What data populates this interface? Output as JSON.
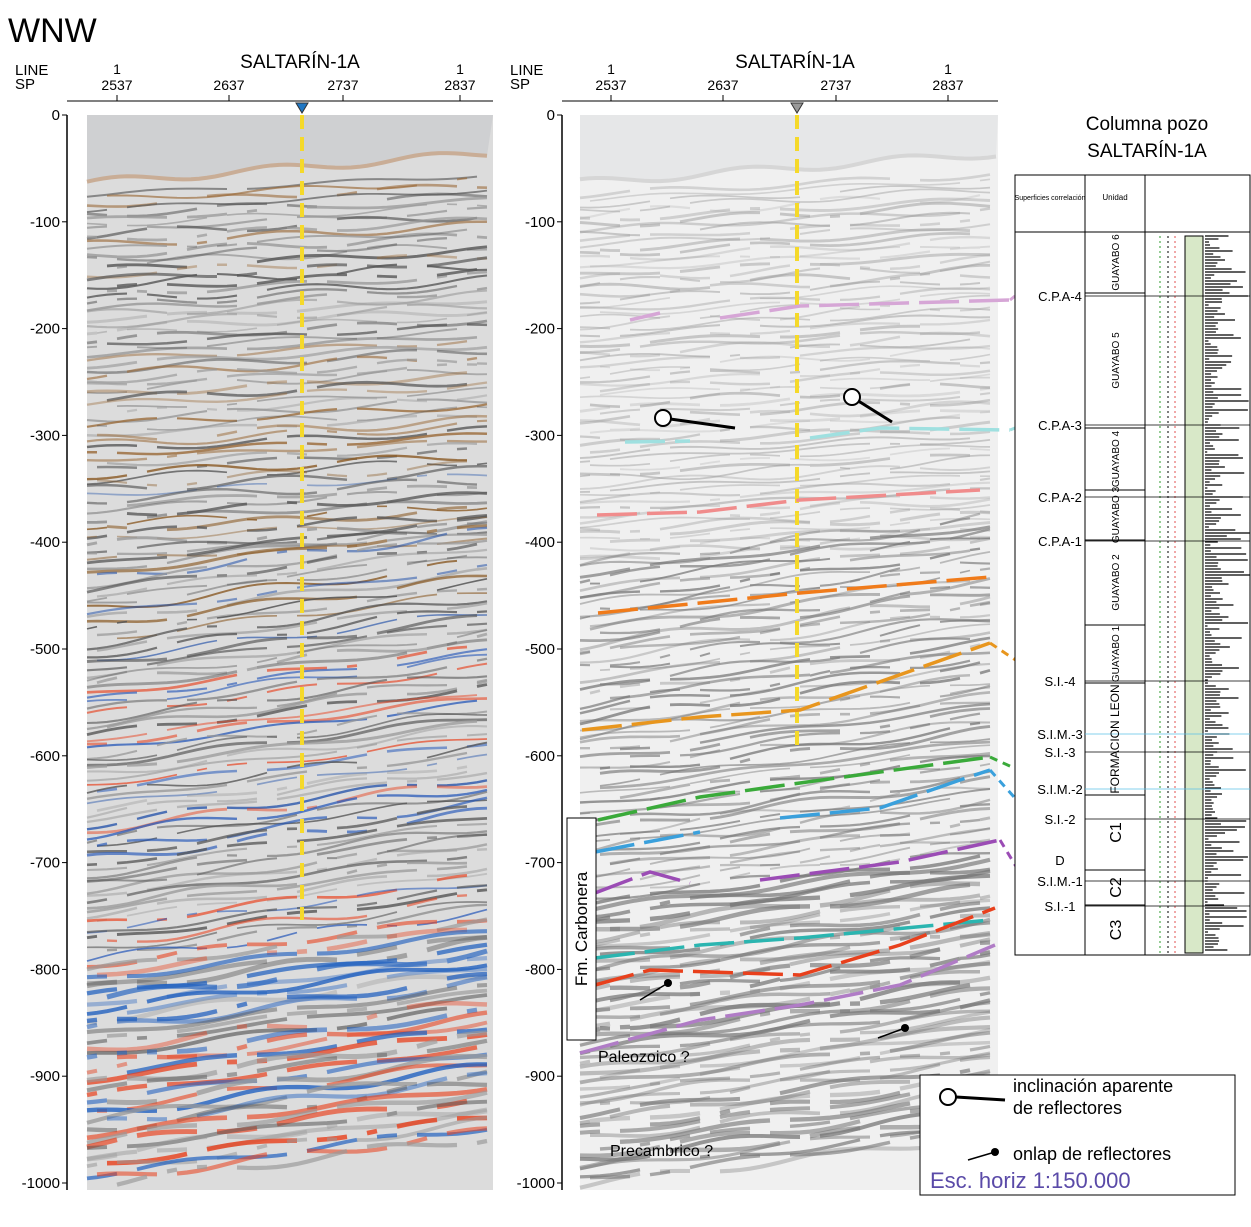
{
  "header": {
    "title": "WNW"
  },
  "panels": [
    {
      "title": "SALTARÍN-1A",
      "line_label": "LINE",
      "sp_label": "SP",
      "line_numbers": [
        "1",
        "1"
      ],
      "sp_ticks": [
        "2537",
        "2637",
        "2737",
        "2837"
      ]
    },
    {
      "title": "SALTARÍN-1A",
      "line_label": "LINE",
      "sp_label": "SP",
      "line_numbers": [
        "1",
        "1"
      ],
      "sp_ticks": [
        "2537",
        "2637",
        "2737",
        "2837"
      ]
    }
  ],
  "depth_ticks": [
    "0",
    "-100",
    "-200",
    "-300",
    "-400",
    "-500",
    "-600",
    "-700",
    "-800",
    "-900",
    "-1000"
  ],
  "annotations": {
    "formation": "Fm. Carbonera",
    "lower_1": "Paleozoico ?",
    "lower_2": "Precambrico ?"
  },
  "well_column": {
    "title": [
      "Columna pozo",
      "SALTARÍN-1A"
    ],
    "headers": [
      "Superficies correlación",
      "Unidad"
    ],
    "surfaces": [
      "C.P.A-4",
      "C.P.A-3",
      "C.P.A-2",
      "C.P.A-1",
      "S.I.-4",
      "S.I.M.-3",
      "S.I.-3",
      "S.I.M.-2",
      "S.I.-2",
      "D",
      "S.I.M.-1",
      "S.I.-1"
    ],
    "units": [
      "GUAYABO 6",
      "GUAYABO 5",
      "GUAYABO 4",
      "GUAYABO 3",
      "GUAYABO 2",
      "GUAYABO 1",
      "FORMACION LEON",
      "C1",
      "C2",
      "C3"
    ]
  },
  "legend": {
    "items": [
      "inclinación aparente de reflectores",
      "onlap de reflectores"
    ],
    "scale": "Esc. horiz 1:150.000"
  }
}
